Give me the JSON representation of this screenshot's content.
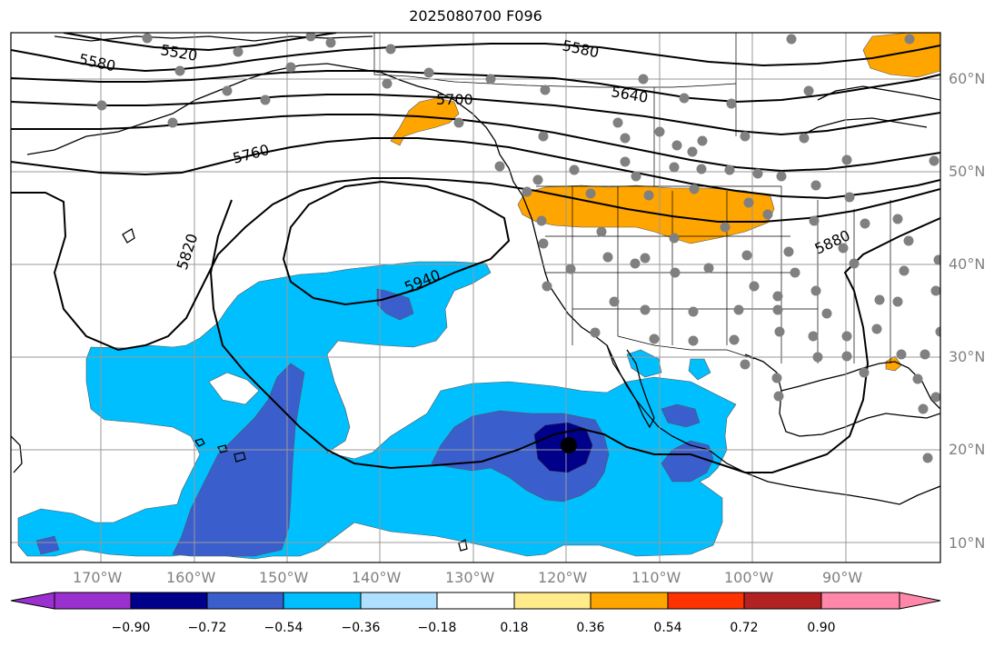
{
  "title": "2025080700 F096",
  "latitude_labels": [
    "60°N",
    "50°N",
    "40°N",
    "30°N",
    "20°N",
    "10°N"
  ],
  "longitude_labels": [
    "170°W",
    "160°W",
    "150°W",
    "140°W",
    "130°W",
    "120°W",
    "110°W",
    "100°W",
    "90°W"
  ],
  "contour_labels": [
    "5520",
    "5580",
    "5580",
    "5640",
    "5700",
    "5760",
    "5820",
    "5880",
    "5940"
  ],
  "colorbar": {
    "tick_labels": [
      "−0.90",
      "−0.72",
      "−0.54",
      "−0.36",
      "−0.18",
      "0.18",
      "0.36",
      "0.54",
      "0.72",
      "0.90"
    ],
    "colors": [
      "#9b30d0",
      "#00008b",
      "#3a5fcd",
      "#00bfff",
      "#b0e0ff",
      "#ffffff",
      "#ffeb8a",
      "#ffa500",
      "#ff3300",
      "#b22222",
      "#ff88aa"
    ]
  },
  "field_colors": {
    "negative_strong": "#00008b",
    "negative_mid": "#3a5fcd",
    "negative_weak": "#00bfff",
    "positive_mid": "#ffa500"
  }
}
